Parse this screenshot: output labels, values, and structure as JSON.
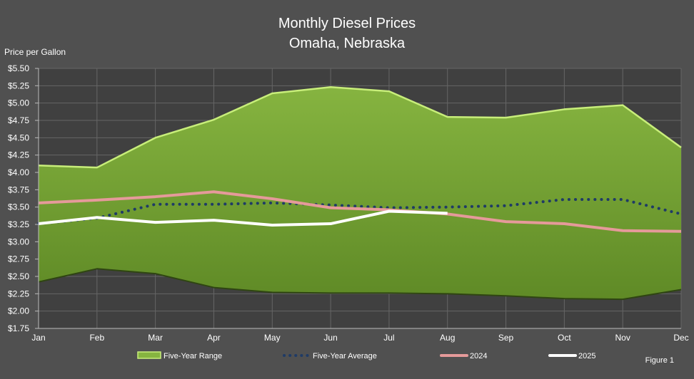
{
  "chart_data": {
    "type": "area",
    "title": "Monthly Diesel Prices",
    "subtitle": "Omaha, Nebraska",
    "ylabel": "Price per Gallon",
    "xlabel": "",
    "ylim": [
      1.75,
      5.5
    ],
    "ystep": 0.25,
    "grid": true,
    "legend_position": "bottom",
    "footnote": "Figure 1",
    "categories": [
      "Jan",
      "Feb",
      "Mar",
      "Apr",
      "May",
      "Jun",
      "Jul",
      "Aug",
      "Sep",
      "Oct",
      "Nov",
      "Dec"
    ],
    "range": {
      "name": "Five-Year Range",
      "color": "#7da83a",
      "high": [
        4.1,
        4.07,
        4.5,
        4.76,
        5.14,
        5.23,
        5.17,
        4.8,
        4.79,
        4.91,
        4.97,
        4.36
      ],
      "low": [
        2.42,
        2.61,
        2.54,
        2.34,
        2.27,
        2.26,
        2.26,
        2.25,
        2.22,
        2.18,
        2.17,
        2.31
      ]
    },
    "series": [
      {
        "name": "Five-Year Average",
        "color": "#1f3b66",
        "style": "dotted",
        "values": [
          3.26,
          3.34,
          3.54,
          3.54,
          3.56,
          3.53,
          3.49,
          3.5,
          3.52,
          3.61,
          3.61,
          3.4
        ]
      },
      {
        "name": "2024",
        "color": "#e59a9a",
        "style": "solid",
        "values": [
          3.56,
          3.6,
          3.65,
          3.72,
          3.62,
          3.49,
          3.46,
          3.4,
          3.29,
          3.26,
          3.16,
          3.15
        ]
      },
      {
        "name": "2025",
        "color": "#ffffff",
        "style": "solid",
        "values": [
          3.26,
          3.35,
          3.28,
          3.31,
          3.24,
          3.26,
          3.44,
          3.41,
          null,
          null,
          null,
          null
        ]
      }
    ]
  }
}
